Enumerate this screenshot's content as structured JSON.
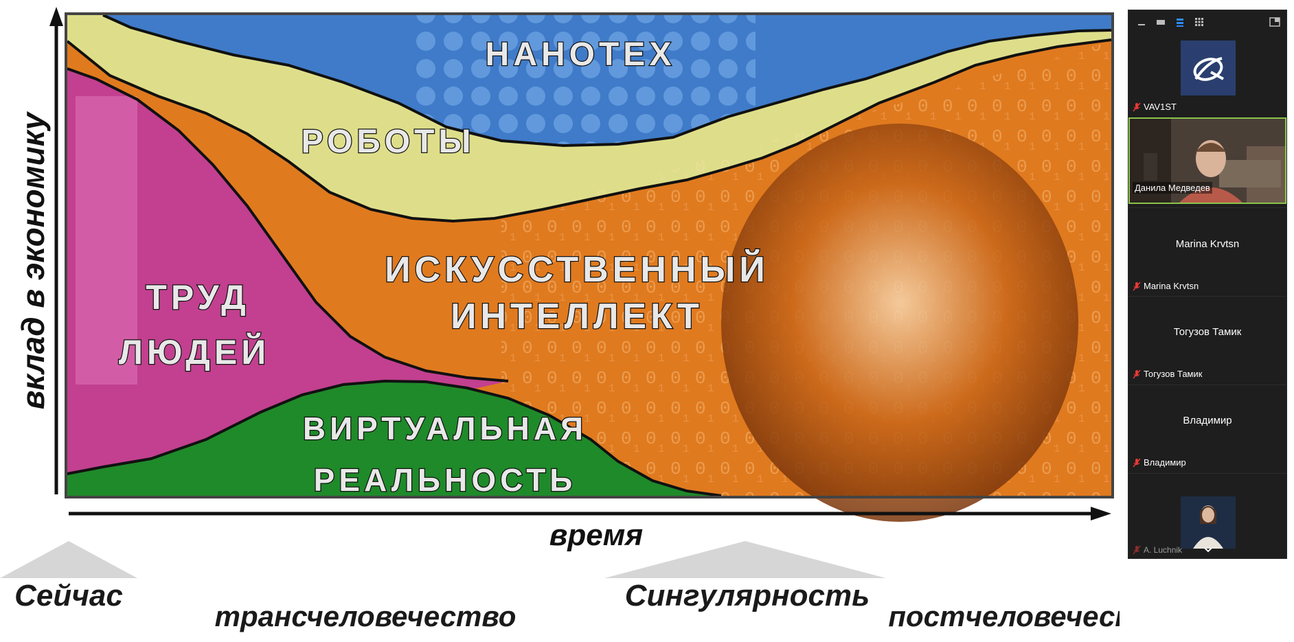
{
  "slide": {
    "regions": {
      "nanotech": "НАНОТЕХ",
      "robots": "РОБОТЫ",
      "ai_line1": "ИСКУССТВЕННЫЙ",
      "ai_line2": "ИНТЕЛЛЕКТ",
      "labor_line1": "ТРУД",
      "labor_line2": "ЛЮДЕЙ",
      "vr_line1": "ВИРТУАЛЬНАЯ",
      "vr_line2": "РЕАЛЬНОСТЬ"
    },
    "y_axis_label": "вклад в экономику",
    "x_axis_label": "время",
    "phases": {
      "now": "Сейчас",
      "transhumanism": "трансчеловечество",
      "singularity": "Сингулярность",
      "posthumanism": "постчеловечество"
    },
    "colors": {
      "nanotech": "#3f7bc9",
      "robots": "#dede8a",
      "ai": "#e07a1f",
      "labor": "#c2408f",
      "vr": "#1f8a2a"
    }
  },
  "panel": {
    "participants": [
      {
        "name": "VAV1ST",
        "display": "avatar-logo",
        "muted": true
      },
      {
        "name": "Данила Медведев",
        "display": "video",
        "muted": false,
        "active_speaker": true
      },
      {
        "name": "Marina Krvtsn",
        "display": "name-only",
        "muted": true
      },
      {
        "name": "Тогузов Тамик",
        "display": "name-only",
        "muted": true
      },
      {
        "name": "Владимир",
        "display": "name-only",
        "muted": true
      },
      {
        "name": "A. Luchnik",
        "display": "video",
        "muted": true
      }
    ],
    "colors": {
      "background": "#1e1e1e",
      "active_border": "#8bc34a",
      "muted_icon": "#e53935",
      "view_active": "#2d8cff"
    }
  }
}
